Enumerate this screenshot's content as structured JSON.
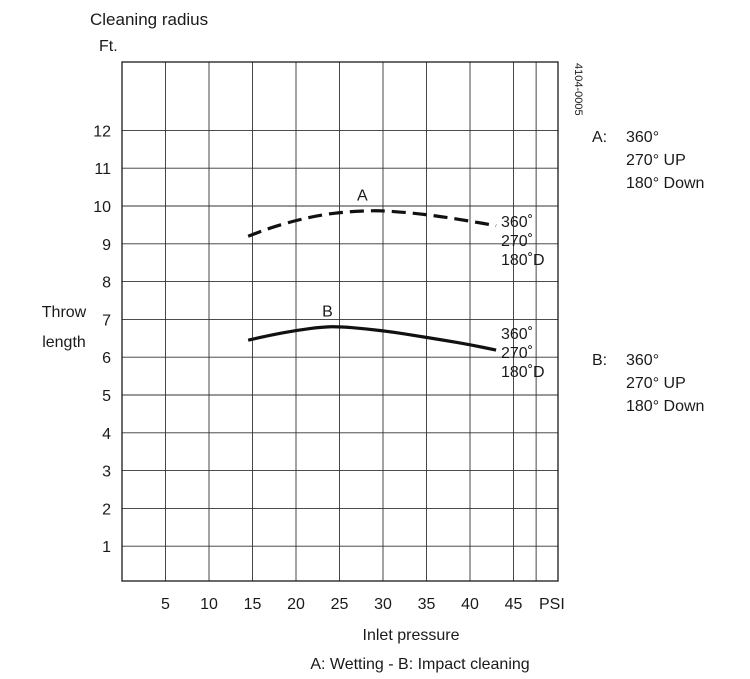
{
  "chart_data": {
    "type": "line",
    "title": "Cleaning radius",
    "y_unit": "Ft.",
    "x_unit": "PSI",
    "ylabel": [
      "Throw",
      "length"
    ],
    "xlabel": "Inlet pressure",
    "caption": "A: Wetting - B: Impact cleaning",
    "figure_code": "4104-0005",
    "xlim": [
      0,
      50
    ],
    "ylim": [
      0,
      13.2
    ],
    "x_ticks": [
      5,
      10,
      15,
      20,
      25,
      30,
      35,
      40,
      45
    ],
    "y_ticks": [
      1,
      2,
      3,
      4,
      5,
      6,
      7,
      8,
      9,
      10,
      11,
      12
    ],
    "grid": true,
    "series": [
      {
        "label": "A",
        "style": "dashed",
        "x": [
          14.5,
          17,
          20,
          23,
          26,
          29,
          31,
          34,
          37,
          40,
          43
        ],
        "y": [
          9.2,
          9.42,
          9.62,
          9.77,
          9.85,
          9.88,
          9.86,
          9.8,
          9.71,
          9.6,
          9.48
        ],
        "end_labels": [
          "360˚",
          "270˚",
          "180˚D"
        ]
      },
      {
        "label": "B",
        "style": "solid",
        "x": [
          14.5,
          17,
          20,
          23,
          25,
          28,
          31,
          34,
          37,
          40,
          43
        ],
        "y": [
          6.45,
          6.58,
          6.71,
          6.8,
          6.81,
          6.75,
          6.67,
          6.56,
          6.45,
          6.33,
          6.19
        ],
        "end_labels": [
          "360˚",
          "270˚",
          "180˚D"
        ]
      }
    ],
    "legend": [
      {
        "key": "A:",
        "lines": [
          "360°",
          "270° UP",
          "180° Down"
        ]
      },
      {
        "key": "B:",
        "lines": [
          "360°",
          "270° UP",
          "180° Down"
        ]
      }
    ]
  }
}
